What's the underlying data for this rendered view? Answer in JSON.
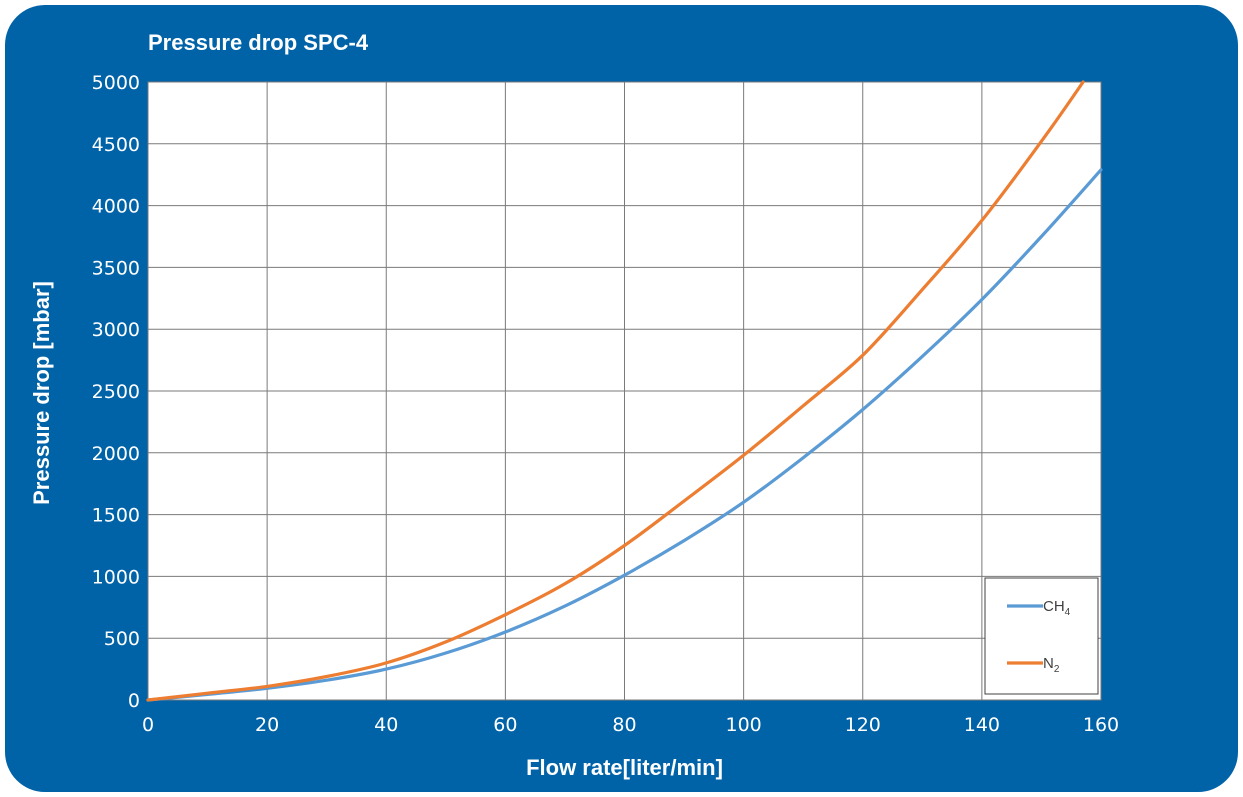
{
  "chart_data": {
    "type": "line",
    "title": "Pressure drop SPC-4",
    "xlabel": "Flow rate[liter/min]",
    "ylabel": "Pressure drop [mbar]",
    "xlim": [
      0,
      160
    ],
    "ylim": [
      0,
      5000
    ],
    "x_ticks": [
      0,
      20,
      40,
      60,
      80,
      100,
      120,
      140,
      160
    ],
    "y_ticks": [
      0,
      500,
      1000,
      1500,
      2000,
      2500,
      3000,
      3500,
      4000,
      4500,
      5000
    ],
    "grid": true,
    "legend_position": "bottom-right",
    "series": [
      {
        "name": "CH",
        "subscript": "4",
        "color": "#5b9bd5",
        "x": [
          0,
          10,
          20,
          30,
          40,
          50,
          60,
          70,
          80,
          90,
          100,
          110,
          120,
          130,
          140,
          150,
          160
        ],
        "y": [
          0,
          45,
          95,
          160,
          250,
          380,
          550,
          760,
          1010,
          1290,
          1600,
          1960,
          2350,
          2780,
          3240,
          3750,
          4290
        ]
      },
      {
        "name": "N",
        "subscript": "2",
        "color": "#ed7d31",
        "x": [
          0,
          10,
          20,
          30,
          40,
          50,
          60,
          70,
          80,
          90,
          100,
          110,
          120,
          130,
          140,
          150,
          157
        ],
        "y": [
          0,
          55,
          110,
          190,
          300,
          470,
          690,
          940,
          1250,
          1610,
          1980,
          2380,
          2790,
          3320,
          3880,
          4520,
          5000
        ]
      }
    ]
  }
}
